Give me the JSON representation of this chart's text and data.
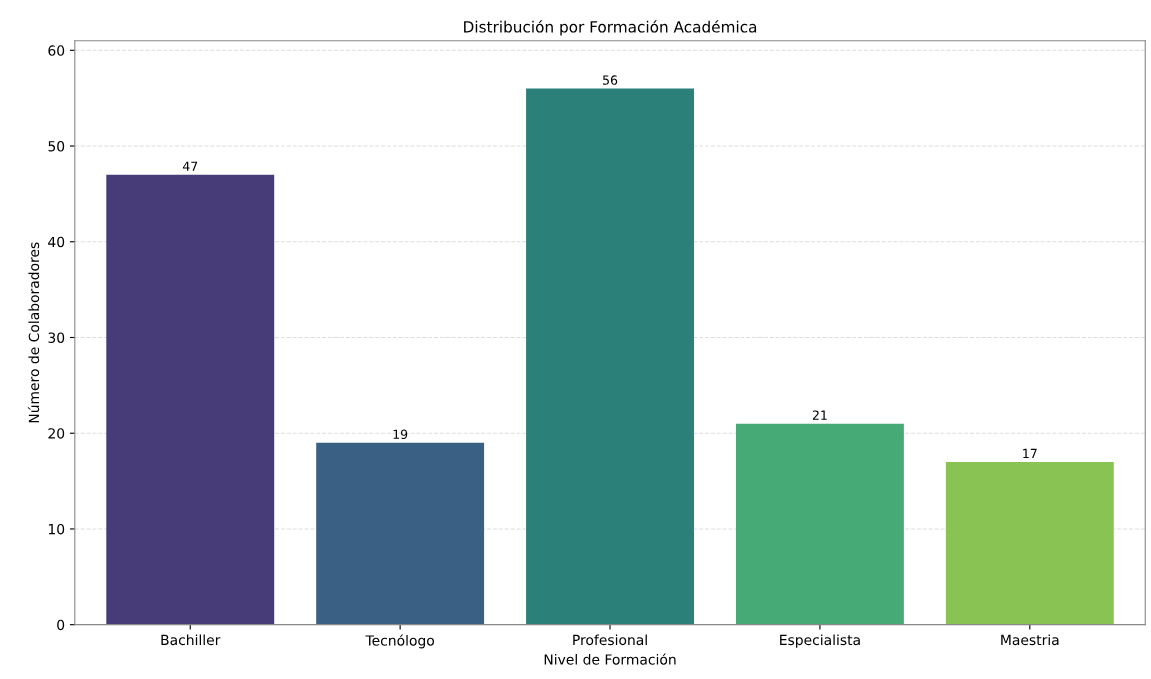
{
  "chart_data": {
    "type": "bar",
    "title": "Distribución por Formación Académica",
    "xlabel": "Nivel de Formación",
    "ylabel": "Número de Colaboradores",
    "categories": [
      "Bachiller",
      "Tecnólogo",
      "Profesional",
      "Especialista",
      "Maestria"
    ],
    "values": [
      47,
      19,
      56,
      21,
      17
    ],
    "colors": [
      "#483c78",
      "#3a6184",
      "#2b8079",
      "#45aa76",
      "#88c353"
    ],
    "ylim": [
      0,
      61
    ],
    "yticks": [
      0,
      10,
      20,
      30,
      40,
      50,
      60
    ],
    "grid": "y",
    "data_labels": true
  }
}
